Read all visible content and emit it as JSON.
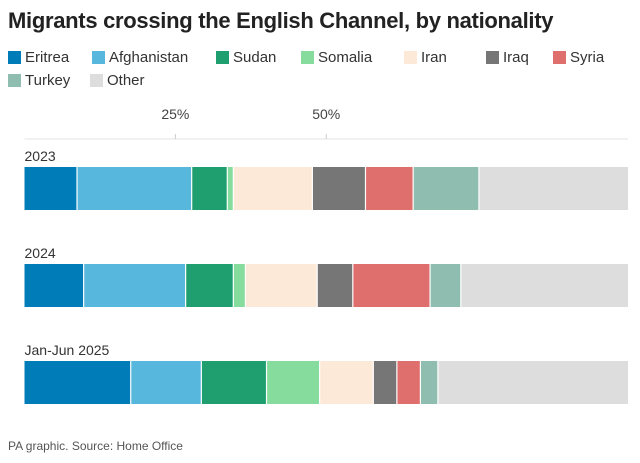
{
  "chart_data": {
    "type": "bar",
    "orientation": "horizontal",
    "stacked": true,
    "title": "Migrants crossing the English Channel, by nationality",
    "categories": [
      "2023",
      "2024",
      "Jan-Jun 2025"
    ],
    "series": [
      {
        "name": "Eritrea",
        "color": "#007db8",
        "values": [
          8.8,
          9.9,
          17.7
        ]
      },
      {
        "name": "Afghanistan",
        "color": "#58b7dc",
        "values": [
          19.0,
          16.9,
          11.7
        ]
      },
      {
        "name": "Sudan",
        "color": "#1f9e6f",
        "values": [
          5.9,
          7.9,
          10.8
        ]
      },
      {
        "name": "Somalia",
        "color": "#86dc9c",
        "values": [
          1.0,
          2.0,
          8.8
        ]
      },
      {
        "name": "Iran",
        "color": "#fde9d8",
        "values": [
          13.1,
          11.9,
          8.9
        ]
      },
      {
        "name": "Iraq",
        "color": "#767676",
        "values": [
          8.8,
          5.9,
          3.9
        ]
      },
      {
        "name": "Syria",
        "color": "#de6f6d",
        "values": [
          7.9,
          12.8,
          3.9
        ]
      },
      {
        "name": "Turkey",
        "color": "#8fbeb0",
        "values": [
          10.9,
          5.1,
          2.9
        ]
      },
      {
        "name": "Other",
        "color": "#dddddd",
        "values": [
          24.6,
          27.6,
          31.4
        ]
      }
    ],
    "xlim": [
      0,
      100
    ],
    "xticks": [
      25,
      50
    ],
    "xtick_labels": [
      "25%",
      "50%"
    ],
    "legend_position": "top",
    "grid": false
  },
  "footer": "PA graphic. Source: Home Office"
}
